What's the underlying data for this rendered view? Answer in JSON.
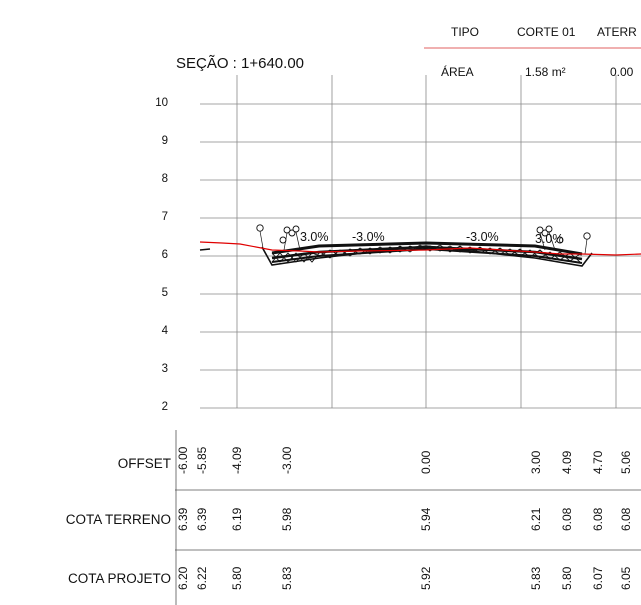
{
  "header": {
    "tipo_label": "TIPO",
    "corte_label": "CORTE 01",
    "aterro_label": "ATERR",
    "area_label": "ÁREA",
    "corte_area": "1.58 m²",
    "aterro_area": "0.00"
  },
  "section_title": "SEÇÃO : 1+640.00",
  "y_axis": {
    "ticks": [
      "10",
      "9",
      "8",
      "7",
      "6",
      "5",
      "4",
      "3",
      "2"
    ],
    "range": [
      2,
      10
    ]
  },
  "slopes": {
    "left_small": "3.0%",
    "left": "-3.0%",
    "right": "-3.0%",
    "right_small": "3.0%"
  },
  "table": {
    "rows": [
      {
        "label": "OFFSET",
        "values": [
          "-6.00",
          "-5.85",
          "-4.09",
          "-3.00",
          "0.00",
          "3.00",
          "4.09",
          "4.70",
          "5.06"
        ]
      },
      {
        "label": "COTA TERRENO",
        "values": [
          "6.39",
          "6.39",
          "6.19",
          "5.98",
          "5.94",
          "6.21",
          "6.08",
          "6.08",
          "6.08"
        ]
      },
      {
        "label": "COTA PROJETO",
        "values": [
          "6.20",
          "6.22",
          "5.80",
          "5.83",
          "5.92",
          "5.83",
          "5.80",
          "6.07",
          "6.05"
        ]
      }
    ]
  },
  "colors": {
    "terrain": "#e00000",
    "project": "#111111",
    "grid": "#888888",
    "header_line": "#e06060"
  }
}
